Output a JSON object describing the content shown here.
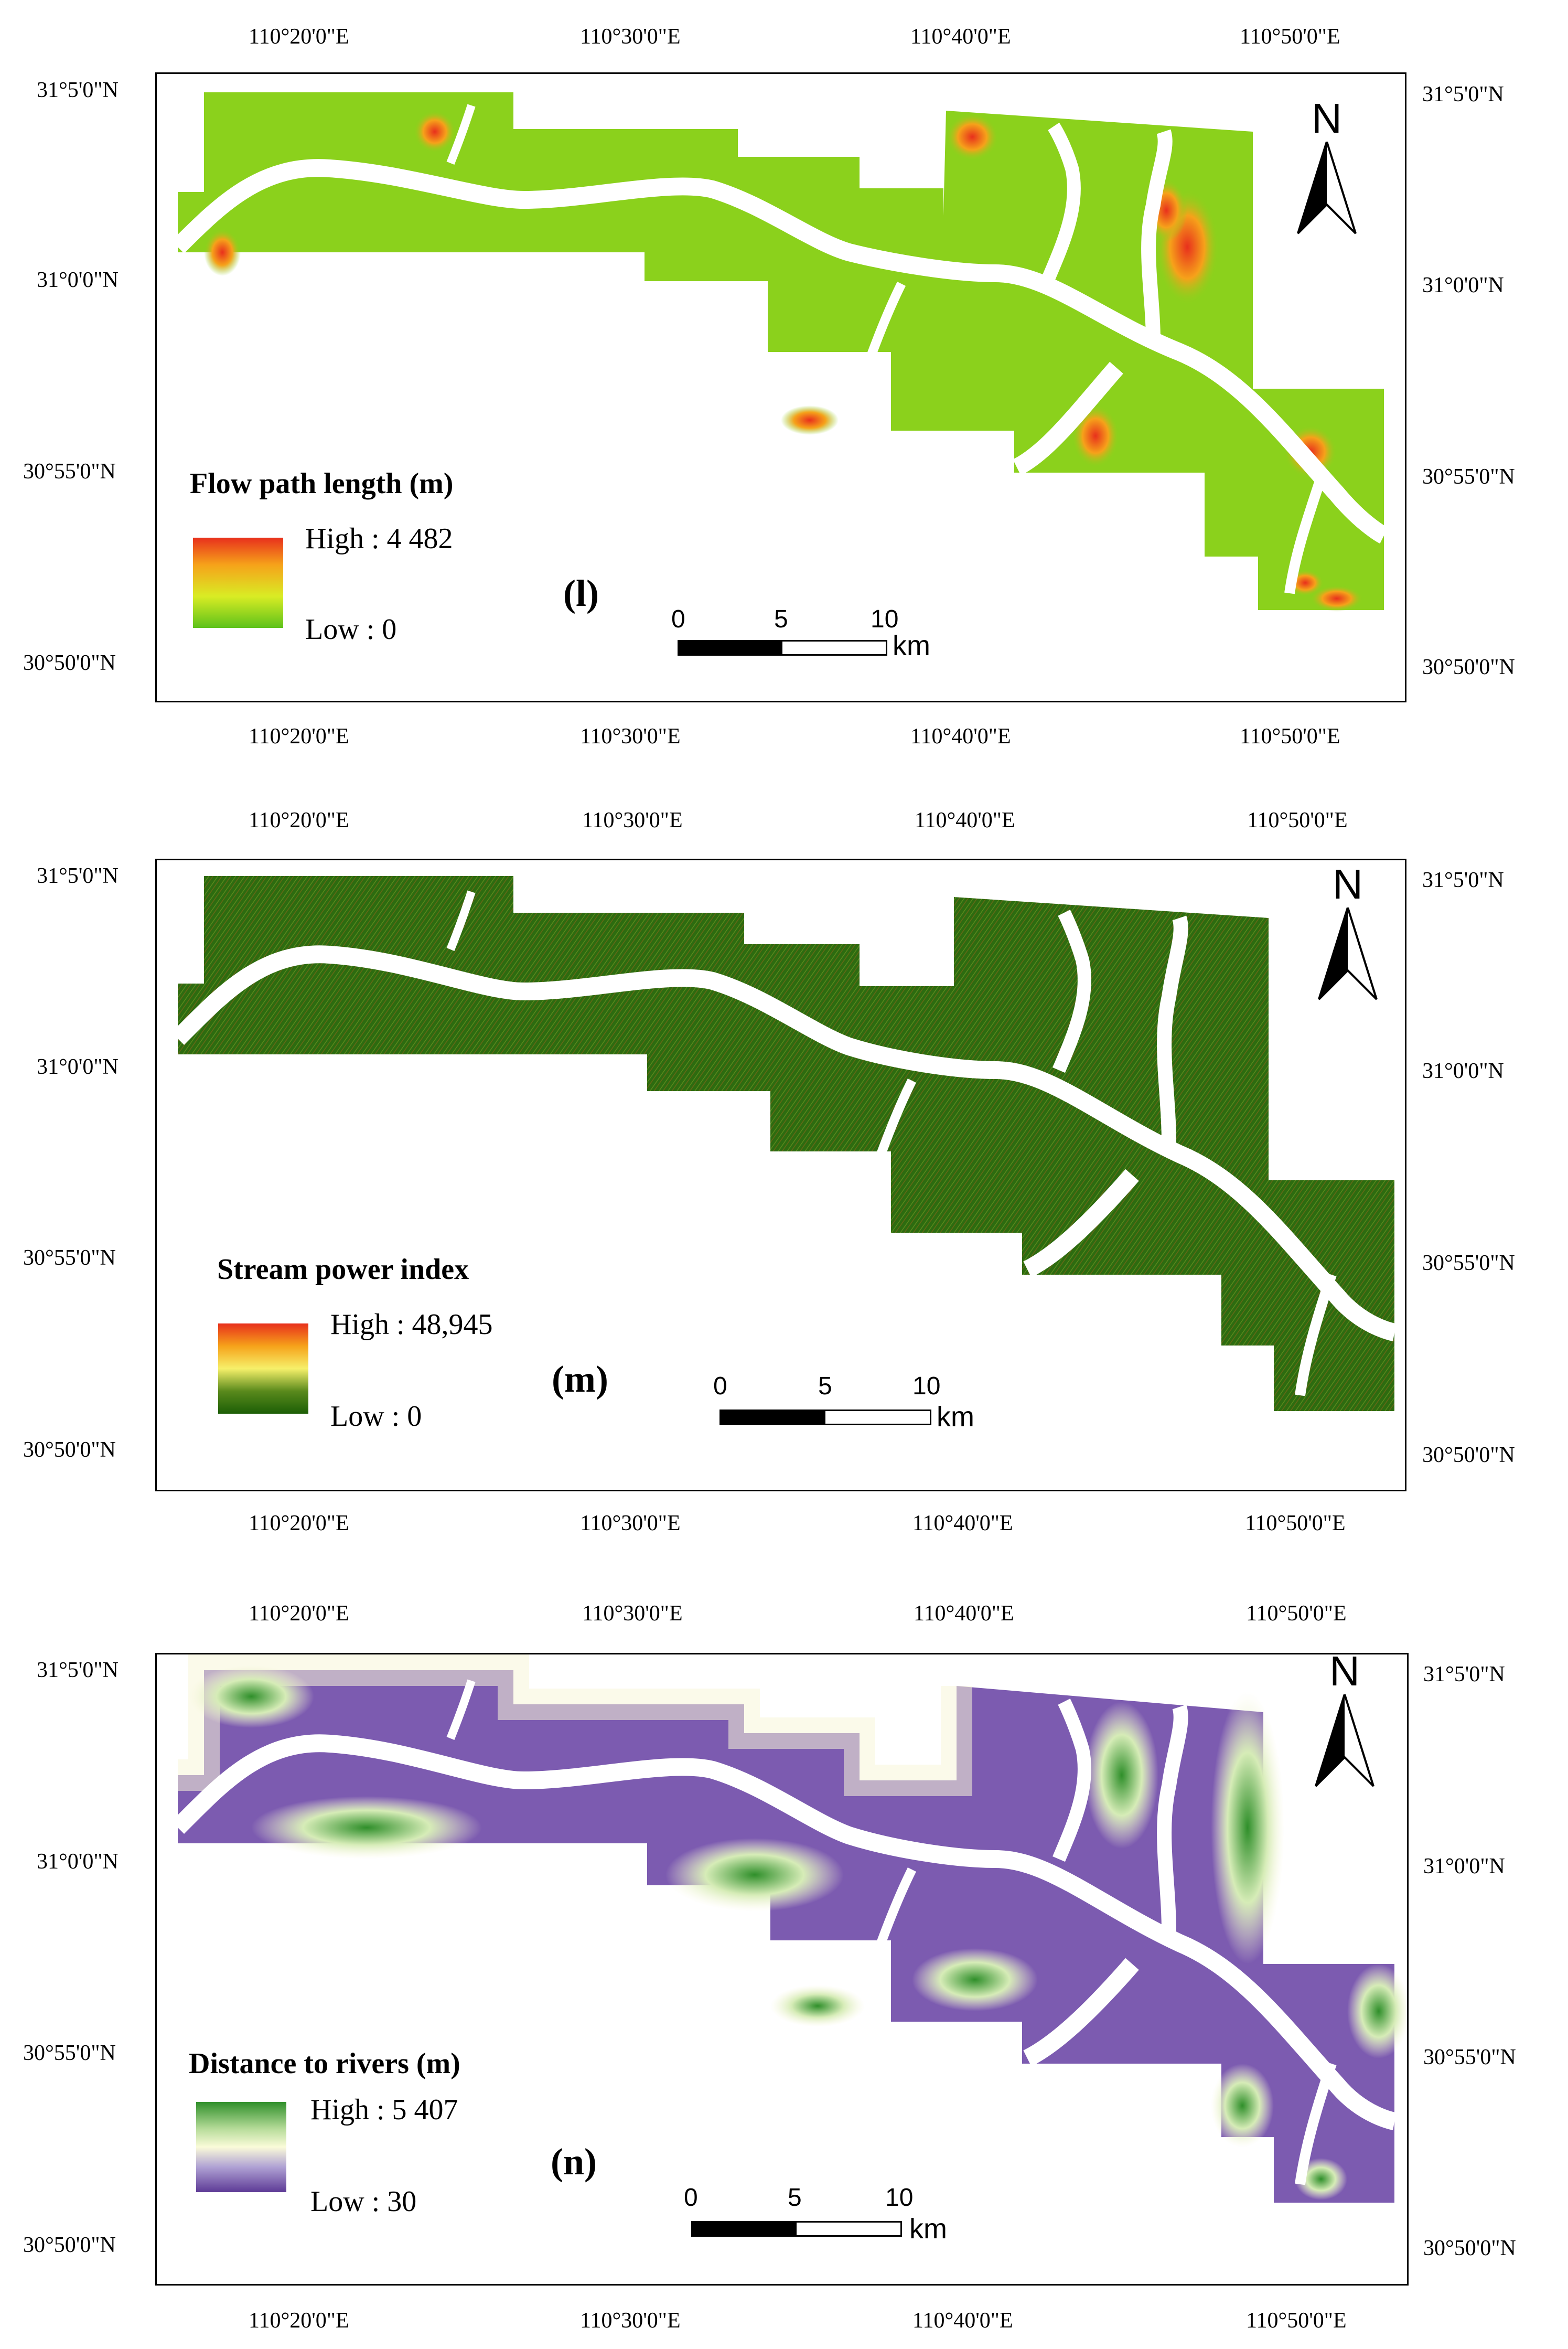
{
  "coords": {
    "lon_labels": [
      "110°20'0\"E",
      "110°30'0\"E",
      "110°40'0\"E",
      "110°50'0\"E"
    ],
    "lat_labels": [
      "31°5'0\"N",
      "31°0'0\"N",
      "30°55'0\"N",
      "30°50'0\"N"
    ]
  },
  "north_letter": "N",
  "scale": {
    "ticks": [
      "0",
      "5",
      "10"
    ],
    "unit": "km"
  },
  "panels": [
    {
      "id": "l",
      "label": "(l)",
      "legend_title": "Flow path length (m)",
      "legend_high": "High : 4 482",
      "legend_low": "Low : 0",
      "ramp_colors": [
        "#e8301c",
        "#f6a21a",
        "#d9ec24",
        "#5dc21a"
      ],
      "base_color": "#8bd11c"
    },
    {
      "id": "m",
      "label": "(m)",
      "legend_title": "Stream power index",
      "legend_high": "High : 48,945",
      "legend_low": "Low : 0",
      "ramp_colors": [
        "#e8301c",
        "#f6a21a",
        "#f6f06a",
        "#2a7d0b",
        "#1c5e06"
      ],
      "base_color": "#2d6b10"
    },
    {
      "id": "n",
      "label": "(n)",
      "legend_title": "Distance to rivers (m)",
      "legend_high": "High : 5 407",
      "legend_low": "Low : 30",
      "ramp_colors": [
        "#2f8f2a",
        "#b7dc9a",
        "#fbfbd9",
        "#b0a2d4",
        "#5d3a96"
      ],
      "base_color": "#7c5bb0"
    }
  ]
}
